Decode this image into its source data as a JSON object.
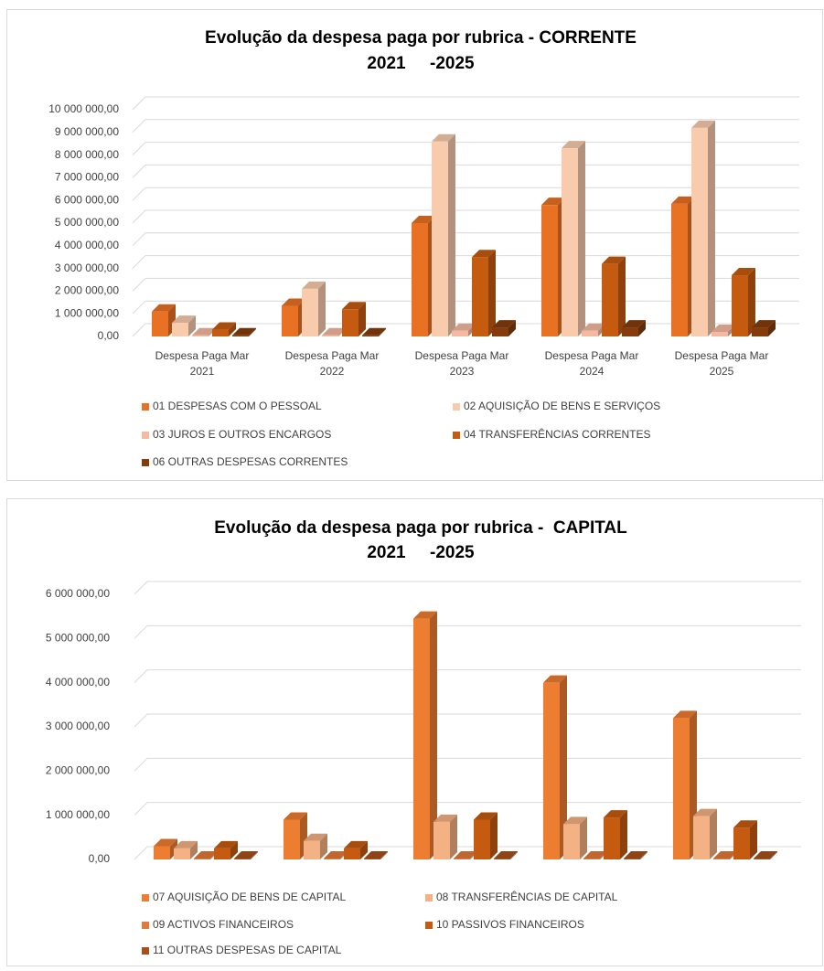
{
  "chart_data": [
    {
      "type": "bar3d",
      "title": "Evolução da despesa paga por rubrica - CORRENTE",
      "subtitle": "2021     -2025",
      "categories": [
        "Despesa Paga Mar 2021",
        "Despesa Paga Mar 2022",
        "Despesa Paga Mar 2023",
        "Despesa Paga Mar 2024",
        "Despesa Paga Mar 2025"
      ],
      "series": [
        {
          "name": "01  DESPESAS COM O PESSOAL",
          "color": "#e97124",
          "values": [
            1100000,
            1350000,
            5000000,
            5800000,
            5850000
          ]
        },
        {
          "name": "02  AQUISIÇÃO DE BENS E SERVIÇOS",
          "color": "#f8cbad",
          "values": [
            600000,
            2100000,
            8600000,
            8300000,
            9200000
          ]
        },
        {
          "name": "03  JUROS E OUTROS ENCARGOS",
          "color": "#f4b9a0",
          "values": [
            50000,
            50000,
            250000,
            250000,
            200000
          ]
        },
        {
          "name": "04  TRANSFERÊNCIAS CORRENTES",
          "color": "#c55a11",
          "values": [
            300000,
            1200000,
            3500000,
            3200000,
            2700000
          ]
        },
        {
          "name": "06  OUTRAS DESPESAS CORRENTES",
          "color": "#843c0c",
          "values": [
            50000,
            50000,
            400000,
            400000,
            400000
          ]
        }
      ],
      "ylim": [
        0,
        10000000
      ],
      "yticks": [
        {
          "value": 0,
          "label": "0,00"
        },
        {
          "value": 1000000,
          "label": "1 000 000,00"
        },
        {
          "value": 2000000,
          "label": "2 000 000,00"
        },
        {
          "value": 3000000,
          "label": "3 000 000,00"
        },
        {
          "value": 4000000,
          "label": "4 000 000,00"
        },
        {
          "value": 5000000,
          "label": "5 000 000,00"
        },
        {
          "value": 6000000,
          "label": "6 000 000,00"
        },
        {
          "value": 7000000,
          "label": "7 000 000,00"
        },
        {
          "value": 8000000,
          "label": "8 000 000,00"
        },
        {
          "value": 9000000,
          "label": "9 000 000,00"
        },
        {
          "value": 10000000,
          "label": "10 000 000,00"
        }
      ],
      "grid": true,
      "legend": "bottom"
    },
    {
      "type": "bar3d",
      "title": "Evolução da despesa paga por rubrica -  CAPITAL",
      "subtitle": "2021     -2025",
      "series": [
        {
          "name": "07  AQUISIÇÃO DE BENS DE CAPITAL",
          "color": "#ed7d31",
          "values": [
            300000,
            900000,
            5450000,
            4000000,
            3200000
          ]
        },
        {
          "name": "08  TRANSFERÊNCIAS DE CAPITAL",
          "color": "#f4b183",
          "values": [
            250000,
            420000,
            850000,
            800000,
            980000
          ]
        },
        {
          "name": "09  ACTIVOS FINANCEIROS",
          "color": "#e2793a",
          "values": [
            20000,
            20000,
            20000,
            20000,
            20000
          ]
        },
        {
          "name": "10  PASSIVOS FINANCEIROS",
          "color": "#c55a11",
          "values": [
            250000,
            250000,
            900000,
            950000,
            720000
          ]
        },
        {
          "name": "11  OUTRAS DESPESAS DE CAPITAL",
          "color": "#a8501c",
          "values": [
            20000,
            20000,
            20000,
            20000,
            20000
          ]
        }
      ],
      "ylim": [
        0,
        6000000
      ],
      "yticks": [
        {
          "value": 0,
          "label": "0,00"
        },
        {
          "value": 1000000,
          "label": "1 000 000,00"
        },
        {
          "value": 2000000,
          "label": "2 000 000,00"
        },
        {
          "value": 3000000,
          "label": "3 000 000,00"
        },
        {
          "value": 4000000,
          "label": "4 000 000,00"
        },
        {
          "value": 5000000,
          "label": "5 000 000,00"
        },
        {
          "value": 6000000,
          "label": "6 000 000,00"
        }
      ],
      "grid": true,
      "legend": "bottom"
    }
  ]
}
